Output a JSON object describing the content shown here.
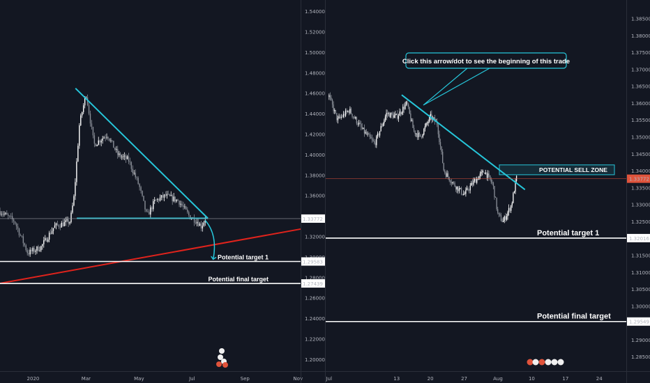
{
  "chart_data": [
    {
      "type": "candlestick",
      "panel": "left",
      "y_ticks": [
        "1.54000",
        "1.52000",
        "1.50000",
        "1.48000",
        "1.46000",
        "1.44000",
        "1.42000",
        "1.40000",
        "1.38000",
        "1.36000",
        "1.34000",
        "1.32000",
        "1.30000",
        "1.28000",
        "1.26000",
        "1.24000",
        "1.22000",
        "1.20000"
      ],
      "ylim": [
        1.1955,
        1.5465
      ],
      "x_ticks": [
        {
          "label": "2020",
          "x": 0
        },
        {
          "label": "Mar",
          "x": 2
        },
        {
          "label": "May",
          "x": 4
        },
        {
          "label": "Jul",
          "x": 6
        },
        {
          "label": "Sep",
          "x": 8
        },
        {
          "label": "Nov",
          "x": 10
        }
      ],
      "xlim": [
        -1.25,
        10.1
      ],
      "close_path": [
        [
          -1.25,
          1.345
        ],
        [
          -0.7,
          1.335
        ],
        [
          -0.2,
          1.304
        ],
        [
          0.3,
          1.31
        ],
        [
          0.8,
          1.33
        ],
        [
          1.4,
          1.335
        ],
        [
          1.55,
          1.36
        ],
        [
          1.75,
          1.43
        ],
        [
          2.0,
          1.46
        ],
        [
          2.3,
          1.41
        ],
        [
          2.8,
          1.42
        ],
        [
          3.2,
          1.4
        ],
        [
          3.6,
          1.395
        ],
        [
          4.0,
          1.37
        ],
        [
          4.3,
          1.34
        ],
        [
          4.6,
          1.355
        ],
        [
          5.0,
          1.36
        ],
        [
          5.5,
          1.355
        ],
        [
          5.9,
          1.34
        ],
        [
          6.2,
          1.335
        ],
        [
          6.35,
          1.33
        ],
        [
          6.5,
          1.3377
        ]
      ],
      "annotations": [
        {
          "label": "Potential target 1",
          "price": 1.29583,
          "price_label": "1.29583"
        },
        {
          "label": "Potential final target",
          "price": 1.27439,
          "price_label": "1.27439"
        },
        {
          "label": "",
          "price": 1.33772,
          "price_label": "1.33772"
        }
      ],
      "trendlines": [
        {
          "name": "descending",
          "color": "#26c6da",
          "from": [
            1.6,
            1.465
          ],
          "to": [
            6.6,
            1.338
          ]
        },
        {
          "name": "horizontal-support",
          "color": "#26c6da",
          "from": [
            1.65,
            1.338
          ],
          "to": [
            6.6,
            1.338
          ]
        },
        {
          "name": "rising-support",
          "color": "#e0231c",
          "from": [
            -1.25,
            1.2745
          ],
          "to": [
            10.1,
            1.3275
          ]
        }
      ],
      "projection": {
        "color": "#26c6da",
        "from": [
          6.5,
          1.336
        ],
        "to": [
          6.8,
          1.298
        ]
      }
    },
    {
      "type": "candlestick",
      "panel": "right",
      "y_ticks": [
        "1.38500",
        "1.38000",
        "1.37500",
        "1.37000",
        "1.36500",
        "1.36000",
        "1.35500",
        "1.35000",
        "1.34500",
        "1.34000",
        "1.33500",
        "1.33000",
        "1.32500",
        "1.32000",
        "1.31500",
        "1.31000",
        "1.30500",
        "1.30000",
        "1.29500",
        "1.29000",
        "1.28500"
      ],
      "ylim": [
        1.2837,
        1.3885
      ],
      "x_ticks": [
        {
          "label": "Jul",
          "x": 0
        },
        {
          "label": "13",
          "x": 2
        },
        {
          "label": "20",
          "x": 3
        },
        {
          "label": "27",
          "x": 4
        },
        {
          "label": "Aug",
          "x": 5
        },
        {
          "label": "10",
          "x": 6
        },
        {
          "label": "17",
          "x": 7
        },
        {
          "label": "24",
          "x": 8
        }
      ],
      "xlim": [
        -0.1,
        8.8
      ],
      "close_path": [
        [
          0,
          1.362
        ],
        [
          0.25,
          1.355
        ],
        [
          0.6,
          1.358
        ],
        [
          1.0,
          1.352
        ],
        [
          1.35,
          1.348
        ],
        [
          1.7,
          1.357
        ],
        [
          2.0,
          1.356
        ],
        [
          2.3,
          1.36
        ],
        [
          2.5,
          1.352
        ],
        [
          2.7,
          1.35
        ],
        [
          3.0,
          1.356
        ],
        [
          3.2,
          1.354
        ],
        [
          3.4,
          1.34
        ],
        [
          3.7,
          1.336
        ],
        [
          4.0,
          1.333
        ],
        [
          4.3,
          1.337
        ],
        [
          4.6,
          1.34
        ],
        [
          4.85,
          1.336
        ],
        [
          5.0,
          1.327
        ],
        [
          5.15,
          1.325
        ],
        [
          5.4,
          1.33
        ],
        [
          5.55,
          1.338
        ]
      ],
      "annotations": [
        {
          "label": "Potential target 1",
          "price": 1.32016,
          "price_label": "1.32016"
        },
        {
          "label": "Potential final target",
          "price": 1.29549,
          "price_label": "1.29549"
        },
        {
          "label": "POTENTIAL SELL ZONE",
          "price": 1.33772,
          "price_label": "1.33772"
        },
        {
          "label": "Click this arrow/dot to see the beginning of this trade"
        }
      ],
      "sell_zone": [
        1.3389,
        1.3418
      ],
      "trendlines": [
        {
          "name": "descending",
          "color": "#26c6da",
          "from": [
            2.15,
            1.3625
          ],
          "to": [
            5.8,
            1.3345
          ]
        }
      ]
    }
  ]
}
